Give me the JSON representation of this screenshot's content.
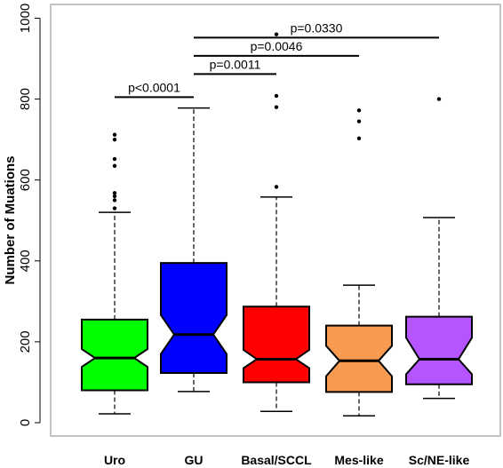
{
  "chart_data": {
    "type": "box",
    "ylabel": "Number of Muations",
    "ylim": [
      -30,
      1000
    ],
    "yticks": [
      0,
      200,
      400,
      600,
      800,
      1000
    ],
    "notched": true,
    "grid": false,
    "categories": [
      "Uro",
      "GU",
      "Basal/SCCL",
      "Mes-like",
      "Sc/NE-like"
    ],
    "boxes": [
      {
        "category": "Uro",
        "color": "#00ff00",
        "whisker_low": 22,
        "q1": 80,
        "median": 160,
        "q3": 255,
        "whisker_high": 520,
        "notch_low": 138,
        "notch_high": 182,
        "outliers": [
          530,
          550,
          560,
          568,
          635,
          652,
          700,
          712
        ]
      },
      {
        "category": "GU",
        "color": "#0000ff",
        "whisker_low": 77,
        "q1": 123,
        "median": 218,
        "q3": 395,
        "whisker_high": 778,
        "notch_low": 170,
        "notch_high": 266,
        "outliers": []
      },
      {
        "category": "Basal/SCCL",
        "color": "#ff0000",
        "whisker_low": 28,
        "q1": 100,
        "median": 157,
        "q3": 287,
        "whisker_high": 558,
        "notch_low": 135,
        "notch_high": 180,
        "outliers": [
          583,
          780,
          808
        ]
      },
      {
        "category": "Mes-like",
        "color": "#f89a4f",
        "whisker_low": 17,
        "q1": 76,
        "median": 153,
        "q3": 240,
        "whisker_high": 340,
        "notch_low": 115,
        "notch_high": 190,
        "outliers": [
          703,
          745,
          772
        ]
      },
      {
        "category": "Sc/NE-like",
        "color": "#b455ff",
        "whisker_low": 60,
        "q1": 95,
        "median": 157,
        "q3": 262,
        "whisker_high": 507,
        "notch_low": 120,
        "notch_high": 210,
        "outliers": [
          800
        ]
      }
    ],
    "annotations": [
      {
        "from": "Uro",
        "to": "GU",
        "y": 805,
        "text": "p<0.0001"
      },
      {
        "from": "GU",
        "to": "Basal/SCCL",
        "y": 862,
        "text": "p=0.0011"
      },
      {
        "from": "GU",
        "to": "Mes-like",
        "y": 907,
        "text": "p=0.0046"
      },
      {
        "from": "GU",
        "to": "Sc/NE-like",
        "y": 952,
        "text": "p=0.0330"
      }
    ],
    "extra_points": [
      {
        "category": "Basal/SCCL",
        "value": 960
      }
    ]
  }
}
